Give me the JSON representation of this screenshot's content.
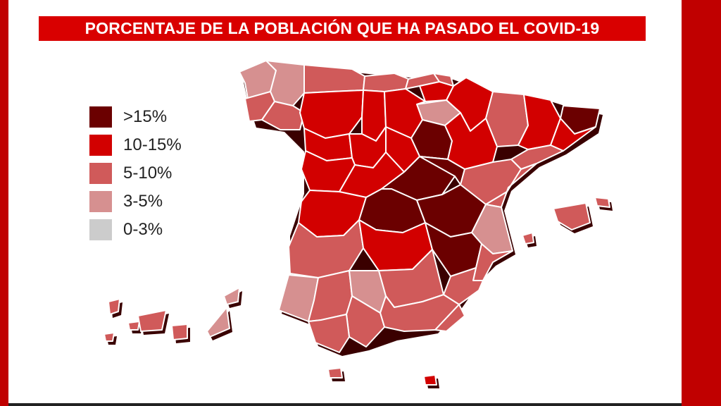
{
  "title": "PORCENTAJE DE LA POBLACIÓN QUE HA PASADO EL COVID-19",
  "colors": {
    "frame": "#c00000",
    "banner": "#d90000",
    "over15": "#6b0000",
    "r10_15": "#d20000",
    "r5_10": "#d05a5a",
    "r3_5": "#d69090",
    "r0_3": "#cccccc"
  },
  "legend": [
    {
      "label": ">15%",
      "color": "#6b0000"
    },
    {
      "label": "10-15%",
      "color": "#d20000"
    },
    {
      "label": "5-10%",
      "color": "#d05a5a"
    },
    {
      "label": "3-5%",
      "color": "#d69090"
    },
    {
      "label": "0-3%",
      "color": "#cccccc"
    }
  ]
}
